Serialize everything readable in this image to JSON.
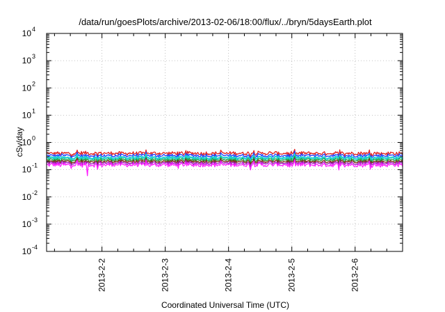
{
  "chart_data": {
    "type": "line",
    "title": "/data/run/goesPlots/archive/2013-02-06/18:00/flux/../bryn/5daysEarth.plot",
    "xlabel": "Coordinated Universal Time (UTC)",
    "ylabel": "cSv/day",
    "y_scale": "log",
    "ylim": [
      0.0001,
      10000
    ],
    "y_ticks": [
      {
        "base": "10",
        "exp": "4",
        "value": 10000
      },
      {
        "base": "10",
        "exp": "3",
        "value": 1000
      },
      {
        "base": "10",
        "exp": "2",
        "value": 100
      },
      {
        "base": "10",
        "exp": "1",
        "value": 10
      },
      {
        "base": "10",
        "exp": "0",
        "value": 1
      },
      {
        "base": "10",
        "exp": "-1",
        "value": 0.1
      },
      {
        "base": "10",
        "exp": "-2",
        "value": 0.01
      },
      {
        "base": "10",
        "exp": "-3",
        "value": 0.001
      },
      {
        "base": "10",
        "exp": "-4",
        "value": 0.0001
      }
    ],
    "xlim": [
      "2013-02-01 03:00",
      "2013-02-06 18:00"
    ],
    "x_ticks": [
      "2013-2-2",
      "2013-2-3",
      "2013-2-4",
      "2013-2-5",
      "2013-2-6"
    ],
    "grid": true,
    "series": [
      {
        "color": "#e02020",
        "level": 0.4,
        "noise": 0.14
      },
      {
        "color": "#2040ff",
        "level": 0.33,
        "noise": 0.13
      },
      {
        "color": "#20d0d0",
        "level": 0.27,
        "noise": 0.12
      },
      {
        "color": "#20a040",
        "level": 0.23,
        "noise": 0.11
      },
      {
        "color": "#7a2a10",
        "level": 0.2,
        "noise": 0.11
      },
      {
        "color": "#a020c0",
        "level": 0.175,
        "noise": 0.12
      },
      {
        "color": "#ff20ff",
        "level": 0.15,
        "noise": 0.16
      }
    ]
  }
}
